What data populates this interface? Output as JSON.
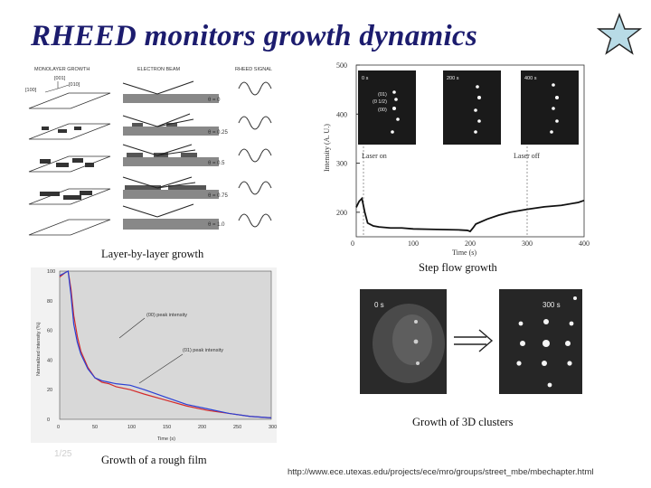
{
  "slide": {
    "title": "RHEED monitors growth dynamics",
    "url": "http://www.ece.utexas.edu/projects/ece/mro/groups/street_mbe/mbechapter.html",
    "slide_number": "1/25"
  },
  "layer_panel": {
    "caption": "Layer-by-layer growth",
    "headers": [
      "MONOLAYER GROWTH",
      "ELECTRON BEAM",
      "RHEED SIGNAL"
    ],
    "direction_labels": [
      "[001]",
      "[010]",
      "[100]"
    ],
    "thetas": [
      "θ = 0",
      "θ = 0.25",
      "θ = 0.5",
      "θ = 0.75",
      "θ = 1.0"
    ]
  },
  "step_panel": {
    "caption": "Step flow growth",
    "ylabel": "Intensity (A. U.)",
    "xlabel": "Time (s)",
    "yticks": [
      "500",
      "400",
      "300",
      "200"
    ],
    "xticks": [
      "0",
      "100",
      "200",
      "300",
      "400"
    ],
    "annotations": [
      "Laser on",
      "Laser off"
    ],
    "insets": [
      "0 s",
      "200 s",
      "400 s"
    ],
    "inset_spot_labels": [
      "(01)",
      "(0 1/2)",
      "(00)"
    ]
  },
  "rough_panel": {
    "caption": "Growth of a rough film",
    "ylabel": "Normalized intensity (%)",
    "xlabel": "Time (s)",
    "yticks": [
      "100",
      "80",
      "60",
      "40",
      "20",
      "0"
    ],
    "xticks": [
      "0",
      "50",
      "100",
      "150",
      "200",
      "250",
      "300"
    ],
    "annotations": [
      "(00) peak intensity",
      "(01) peak intensity"
    ]
  },
  "cluster_panel": {
    "caption": "Growth of 3D clusters",
    "images": [
      "0 s",
      "300 s"
    ]
  },
  "colors": {
    "title": "#1c1c6e",
    "star_fill": "#b8dbe6",
    "red_series": "#d42a2a",
    "blue_series": "#2a3fd4",
    "plot_bg": "#d8d8d8"
  },
  "chart_data": [
    {
      "type": "line",
      "panel": "step_panel",
      "xlabel": "Time (s)",
      "ylabel": "Intensity (A. U.)",
      "xlim": [
        0,
        400
      ],
      "ylim": [
        150,
        500
      ],
      "series": [
        {
          "x": [
            0,
            5,
            10,
            15,
            20,
            30,
            40,
            60,
            80,
            100,
            140,
            180,
            195,
            200,
            205,
            210,
            230,
            250,
            270,
            300,
            330,
            360,
            390,
            400
          ],
          "y": [
            210,
            222,
            228,
            200,
            178,
            172,
            170,
            168,
            168,
            166,
            165,
            164,
            163,
            161,
            168,
            176,
            186,
            194,
            200,
            206,
            211,
            214,
            220,
            224
          ]
        }
      ]
    },
    {
      "type": "line",
      "panel": "rough_panel",
      "xlabel": "Time (s)",
      "ylabel": "Normalized intensity (%)",
      "xlim": [
        0,
        300
      ],
      "ylim": [
        0,
        100
      ],
      "series": [
        {
          "name": "(00) peak intensity",
          "x": [
            0,
            8,
            12,
            16,
            20,
            25,
            30,
            40,
            50,
            60,
            70,
            80,
            100,
            120,
            150,
            180,
            210,
            240,
            270,
            300
          ],
          "y": [
            96,
            99,
            100,
            88,
            70,
            56,
            46,
            35,
            28,
            25,
            24,
            22,
            20,
            17,
            13,
            9,
            6,
            4,
            2,
            1
          ]
        },
        {
          "name": "(01) peak intensity",
          "x": [
            0,
            8,
            12,
            16,
            20,
            25,
            30,
            40,
            50,
            60,
            70,
            80,
            100,
            120,
            150,
            180,
            210,
            240,
            270,
            300
          ],
          "y": [
            97,
            99,
            100,
            84,
            64,
            52,
            44,
            34,
            28,
            26,
            25,
            24,
            23,
            20,
            15,
            10,
            7,
            4,
            2,
            1
          ]
        }
      ]
    }
  ]
}
